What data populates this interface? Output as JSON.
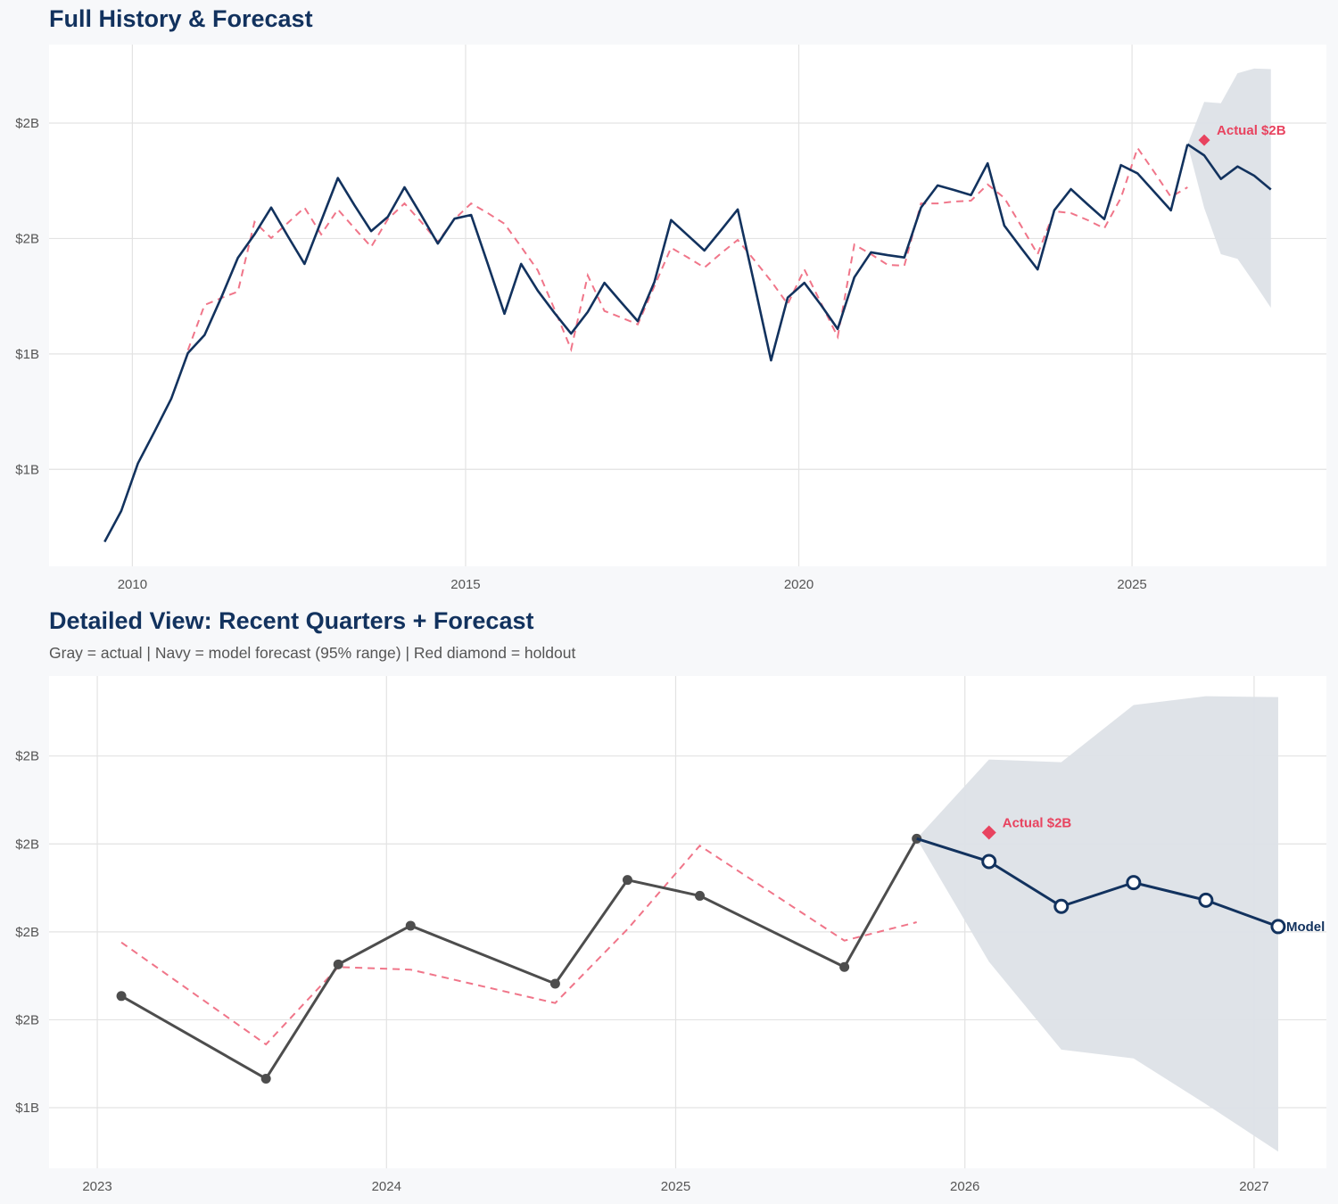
{
  "colors": {
    "navy": "#12325e",
    "forecast_red": "#f07589",
    "holdout": "#e8435f",
    "band": "#dde1e7",
    "actual_gray": "#4d4d4d",
    "grid": "#e3e3e3",
    "panel": "#ffffff",
    "background": "#f7f8fa"
  },
  "chart_data": [
    {
      "type": "line",
      "title": "Full History & Forecast",
      "xlim": [
        "2008-10",
        "2027-12"
      ],
      "ylim": [
        0.79,
        1.92
      ],
      "grid": true,
      "x_ticks": [
        {
          "date": "2010-01",
          "label": "2010"
        },
        {
          "date": "2015-01",
          "label": "2015"
        },
        {
          "date": "2020-01",
          "label": "2020"
        },
        {
          "date": "2025-01",
          "label": "2025"
        }
      ],
      "y_ticks": [
        {
          "value": 1.0,
          "label": "$1B"
        },
        {
          "value": 1.25,
          "label": "$1B"
        },
        {
          "value": 1.5,
          "label": "$2B"
        },
        {
          "value": 1.75,
          "label": "$2B"
        }
      ],
      "unit": "USD billions",
      "dates": [
        "2009-08",
        "2009-11",
        "2010-02",
        "2010-05",
        "2010-08",
        "2010-11",
        "2011-02",
        "2011-05",
        "2011-08",
        "2011-11",
        "2012-02",
        "2012-05",
        "2012-08",
        "2012-11",
        "2013-02",
        "2013-05",
        "2013-08",
        "2013-11",
        "2014-02",
        "2014-05",
        "2014-08",
        "2014-11",
        "2015-02",
        "2015-05",
        "2015-08",
        "2015-11",
        "2016-02",
        "2016-05",
        "2016-08",
        "2016-11",
        "2017-02",
        "2017-05",
        "2017-08",
        "2017-11",
        "2018-02",
        "2018-05",
        "2018-08",
        "2018-11",
        "2019-02",
        "2019-05",
        "2019-08",
        "2019-11",
        "2020-02",
        "2020-05",
        "2020-08",
        "2020-11",
        "2021-02",
        "2021-05",
        "2021-08",
        "2021-11",
        "2022-02",
        "2022-05",
        "2022-08",
        "2022-11",
        "2023-02",
        "2023-05",
        "2023-08",
        "2023-11",
        "2024-02",
        "2024-05",
        "2024-08",
        "2024-11",
        "2025-02",
        "2025-05",
        "2025-08",
        "2025-11"
      ],
      "actual": [
        0.843,
        0.91,
        1.013,
        1.082,
        1.153,
        1.252,
        1.291,
        1.372,
        1.458,
        1.509,
        1.567,
        1.505,
        1.445,
        1.538,
        1.631,
        1.572,
        1.516,
        1.547,
        1.611,
        1.551,
        1.489,
        1.543,
        1.551,
        1.445,
        1.337,
        1.445,
        1.387,
        1.339,
        1.294,
        1.341,
        1.404,
        1.362,
        1.321,
        1.406,
        1.54,
        1.507,
        1.474,
        1.518,
        1.563,
        1.401,
        1.236,
        1.372,
        1.404,
        1.356,
        1.304,
        1.416,
        1.47,
        1.464,
        1.459,
        1.567,
        1.615,
        1.605,
        1.594,
        1.663,
        1.528,
        1.48,
        1.433,
        1.561,
        1.607,
        1.574,
        1.542,
        1.659,
        1.641,
        1.601,
        1.561,
        1.704
      ],
      "fitted": [
        null,
        null,
        null,
        null,
        null,
        1.258,
        1.356,
        1.371,
        1.385,
        1.536,
        1.501,
        1.534,
        1.567,
        1.509,
        1.563,
        1.522,
        1.482,
        1.542,
        1.576,
        1.536,
        1.493,
        1.542,
        1.576,
        1.555,
        1.532,
        1.482,
        1.431,
        1.347,
        1.26,
        1.42,
        1.343,
        1.329,
        1.314,
        1.397,
        1.48,
        1.459,
        1.437,
        1.468,
        1.497,
        1.453,
        1.408,
        1.358,
        1.433,
        1.36,
        1.287,
        1.487,
        1.466,
        1.443,
        1.441,
        1.576,
        1.576,
        1.58,
        1.582,
        1.617,
        1.588,
        1.528,
        1.466,
        1.559,
        1.555,
        1.54,
        1.522,
        1.588,
        1.696,
        1.644,
        1.59,
        1.611
      ],
      "forecast": {
        "dates": [
          "2025-11",
          "2026-02",
          "2026-05",
          "2026-08",
          "2026-11",
          "2027-02"
        ],
        "values": [
          1.704,
          1.68,
          1.629,
          1.656,
          1.636,
          1.606
        ],
        "upper": [
          1.704,
          1.796,
          1.793,
          1.858,
          1.868,
          1.867
        ],
        "lower": [
          1.704,
          1.566,
          1.466,
          1.456,
          1.404,
          1.35
        ]
      },
      "holdout": {
        "date": "2026-02",
        "value": 1.713,
        "label": "Actual $2B"
      }
    },
    {
      "type": "line",
      "title": "Detailed View: Recent Quarters + Forecast",
      "subtitle": "Gray = actual  |  Navy = model forecast (95% range)  |  Red diamond = holdout",
      "xlim": [
        "2022-11",
        "2027-04"
      ],
      "ylim": [
        1.331,
        1.891
      ],
      "grid": true,
      "x_ticks": [
        {
          "date": "2023-01",
          "label": "2023"
        },
        {
          "date": "2024-01",
          "label": "2024"
        },
        {
          "date": "2025-01",
          "label": "2025"
        },
        {
          "date": "2026-01",
          "label": "2026"
        },
        {
          "date": "2027-01",
          "label": "2027"
        }
      ],
      "y_ticks": [
        {
          "value": 1.4,
          "label": "$1B"
        },
        {
          "value": 1.5,
          "label": "$2B"
        },
        {
          "value": 1.6,
          "label": "$2B"
        },
        {
          "value": 1.7,
          "label": "$2B"
        },
        {
          "value": 1.8,
          "label": "$2B"
        }
      ],
      "unit": "USD billions",
      "dates": [
        "2023-02",
        "2023-08",
        "2023-11",
        "2024-02",
        "2024-08",
        "2024-11",
        "2025-02",
        "2025-08",
        "2025-11"
      ],
      "actual": [
        1.527,
        1.433,
        1.563,
        1.607,
        1.541,
        1.659,
        1.641,
        1.56,
        1.706
      ],
      "fitted": [
        1.588,
        1.472,
        1.56,
        1.557,
        1.519,
        1.603,
        1.698,
        1.59,
        1.611
      ],
      "forecast": {
        "dates": [
          "2025-11",
          "2026-02",
          "2026-05",
          "2026-08",
          "2026-11",
          "2027-02"
        ],
        "values": [
          1.706,
          1.68,
          1.629,
          1.656,
          1.636,
          1.606
        ],
        "upper": [
          1.706,
          1.796,
          1.793,
          1.858,
          1.868,
          1.867
        ],
        "lower": [
          1.706,
          1.566,
          1.466,
          1.456,
          1.404,
          1.35
        ],
        "label": "Model"
      },
      "holdout": {
        "date": "2026-02",
        "value": 1.713,
        "label": "Actual $2B"
      }
    }
  ]
}
